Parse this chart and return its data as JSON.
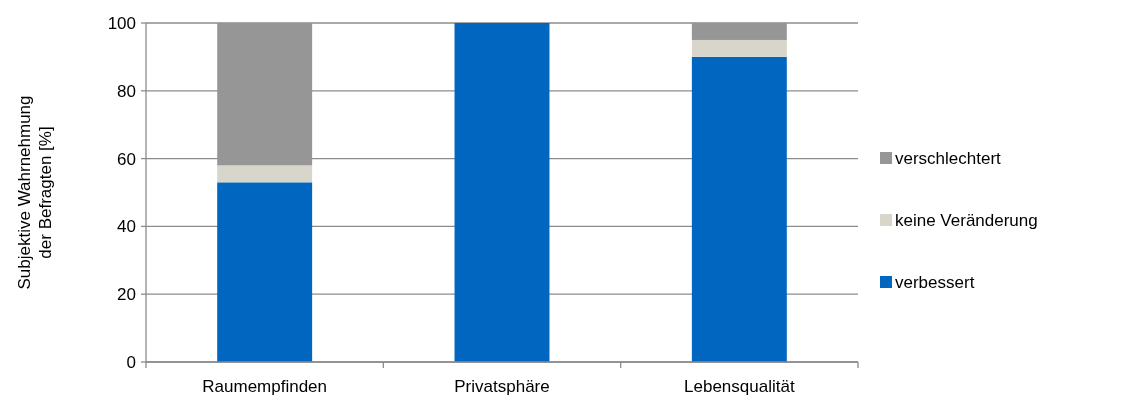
{
  "chart_data": {
    "type": "bar",
    "stacked": true,
    "categories": [
      "Raumempfinden",
      "Privatsphäre",
      "Lebensqualität"
    ],
    "ylabel": "Subjektive Wahrnehmung\nder Befragten [%]",
    "ylim": [
      0,
      100
    ],
    "yticks": [
      0,
      20,
      40,
      60,
      80,
      100
    ],
    "grid": "y",
    "legend": "right",
    "series": [
      {
        "name": "verbessert",
        "color": "#0066bf",
        "values": [
          53,
          100,
          90
        ]
      },
      {
        "name": "keine Veränderung",
        "color": "#d8d6cb",
        "values": [
          5,
          0,
          5
        ]
      },
      {
        "name": "verschlechtert",
        "color": "#969696",
        "values": [
          42,
          0,
          5
        ]
      }
    ]
  }
}
